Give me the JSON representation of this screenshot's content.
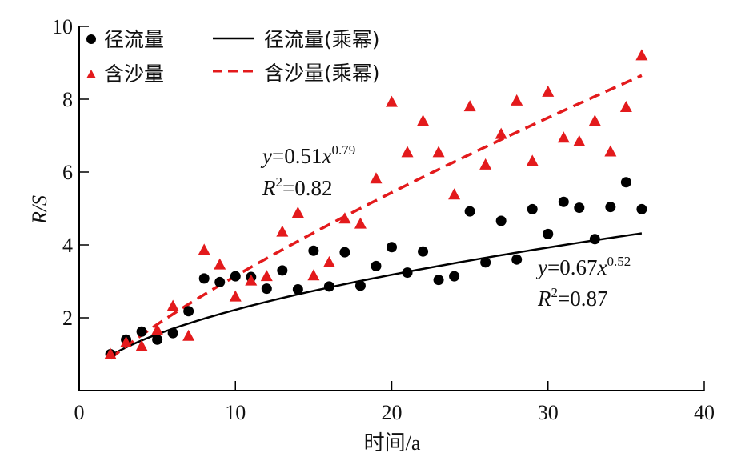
{
  "chart_data": {
    "type": "scatter",
    "title": "",
    "xlabel": "时间/a",
    "ylabel": "R/S",
    "xlim": [
      0,
      40
    ],
    "ylim": [
      0,
      10
    ],
    "xticks": [
      "0",
      "10",
      "20",
      "30",
      "40"
    ],
    "yticks": [
      "2",
      "4",
      "6",
      "8",
      "10"
    ],
    "xtick_values": [
      0,
      10,
      20,
      30,
      40
    ],
    "ytick_values": [
      2,
      4,
      6,
      8,
      10
    ],
    "grid": false,
    "legend_position": "top-left",
    "x": [
      2,
      3,
      4,
      5,
      6,
      7,
      8,
      9,
      10,
      11,
      12,
      13,
      14,
      15,
      16,
      17,
      18,
      19,
      20,
      21,
      22,
      23,
      24,
      25,
      26,
      27,
      28,
      29,
      30,
      31,
      32,
      33,
      34,
      35,
      36
    ],
    "series": [
      {
        "name": "径流量",
        "marker": "circle",
        "color": "#000000",
        "values": [
          1.0,
          1.4,
          1.62,
          1.4,
          1.58,
          2.18,
          3.08,
          2.98,
          3.14,
          3.12,
          2.8,
          3.3,
          2.78,
          3.84,
          2.86,
          3.8,
          2.88,
          3.42,
          3.94,
          3.24,
          3.82,
          3.04,
          3.14,
          4.92,
          3.52,
          4.66,
          3.6,
          4.98,
          4.3,
          5.18,
          5.02,
          4.16,
          5.04,
          5.72,
          4.98
        ]
      },
      {
        "name": "含沙量",
        "marker": "triangle",
        "color": "#e31a1c",
        "values": [
          1.0,
          1.32,
          1.22,
          1.66,
          2.32,
          1.5,
          3.86,
          3.46,
          2.58,
          3.02,
          3.14,
          4.36,
          4.88,
          3.16,
          3.52,
          4.72,
          4.58,
          5.82,
          7.92,
          6.54,
          7.4,
          6.54,
          5.38,
          7.8,
          6.2,
          7.04,
          7.96,
          6.3,
          8.2,
          6.94,
          6.84,
          7.4,
          6.56,
          7.78,
          9.2
        ]
      }
    ],
    "fits": [
      {
        "name": "径流量(乘幂)",
        "style": "solid",
        "color": "#000000",
        "a": 0.67,
        "b": 0.52,
        "x_range": [
          2,
          36
        ],
        "equation": {
          "y": "y",
          "eq_mid": "=0.67",
          "x": "x",
          "exp": "0.52"
        },
        "r2": {
          "r": "R",
          "sup": "2",
          "rest": "=0.87"
        }
      },
      {
        "name": "含沙量(乘幂)",
        "style": "dashed",
        "color": "#e31a1c",
        "a": 0.51,
        "b": 0.79,
        "x_range": [
          2,
          36
        ],
        "equation": {
          "y": "y",
          "eq_mid": "=0.51",
          "x": "x",
          "exp": "0.79"
        },
        "r2": {
          "r": "R",
          "sup": "2",
          "rest": "=0.82"
        }
      }
    ]
  }
}
